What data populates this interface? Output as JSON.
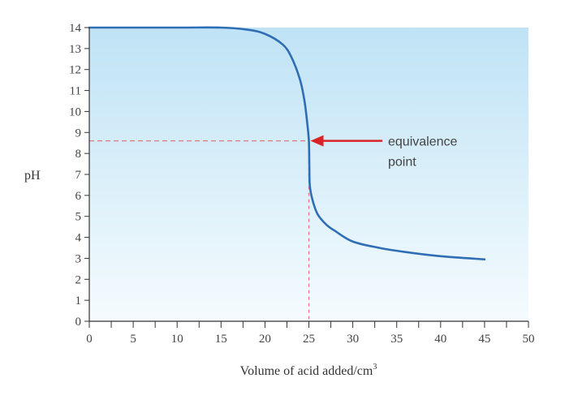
{
  "chart_data": {
    "type": "line",
    "xlabel": "Volume of acid added/cm",
    "xlabel_superscript": "3",
    "ylabel": "pH",
    "xlim": [
      0,
      50
    ],
    "ylim": [
      0,
      14
    ],
    "x_ticks": [
      0,
      5,
      10,
      15,
      20,
      25,
      30,
      35,
      40,
      45,
      50
    ],
    "y_ticks": [
      0,
      1,
      2,
      3,
      4,
      5,
      6,
      7,
      8,
      9,
      10,
      11,
      12,
      13,
      14
    ],
    "series": [
      {
        "values": [
          {
            "x": 0,
            "y": 14.0
          },
          {
            "x": 10,
            "y": 14.0
          },
          {
            "x": 15,
            "y": 14.0
          },
          {
            "x": 18,
            "y": 13.9
          },
          {
            "x": 20,
            "y": 13.7
          },
          {
            "x": 22,
            "y": 13.2
          },
          {
            "x": 23,
            "y": 12.6
          },
          {
            "x": 24,
            "y": 11.5
          },
          {
            "x": 24.5,
            "y": 10.5
          },
          {
            "x": 24.8,
            "y": 9.5
          },
          {
            "x": 25,
            "y": 8.6
          },
          {
            "x": 25.05,
            "y": 7.5
          },
          {
            "x": 25.1,
            "y": 6.5
          },
          {
            "x": 25.4,
            "y": 5.8
          },
          {
            "x": 26,
            "y": 5.1
          },
          {
            "x": 27,
            "y": 4.6
          },
          {
            "x": 28,
            "y": 4.3
          },
          {
            "x": 30,
            "y": 3.8
          },
          {
            "x": 33,
            "y": 3.5
          },
          {
            "x": 36,
            "y": 3.3
          },
          {
            "x": 40,
            "y": 3.1
          },
          {
            "x": 45,
            "y": 2.95
          }
        ],
        "color": "#2f6db5"
      }
    ],
    "annotation": {
      "lines": [
        "equivalence",
        "point"
      ],
      "x": 25,
      "y": 8.6,
      "arrow_color": "#d9252a"
    },
    "background_gradient": [
      "#bfe3f5",
      "#f5fbfe"
    ],
    "grid": false,
    "legend": "none"
  }
}
